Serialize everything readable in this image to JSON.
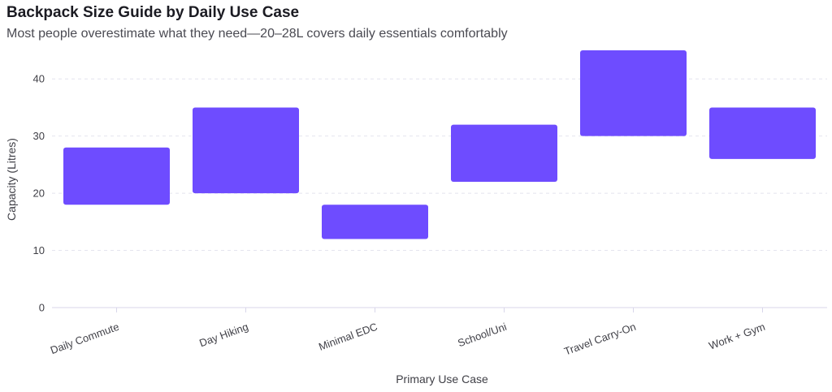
{
  "chart_data": {
    "type": "bar",
    "subtype": "floating-range",
    "title": "Backpack Size Guide by Daily Use Case",
    "subtitle": "Most people overestimate what they need—20–28L covers daily essentials comfortably",
    "xlabel": "Primary Use Case",
    "ylabel": "Capacity (Litres)",
    "ylim": [
      0,
      45
    ],
    "yticks": [
      0,
      10,
      20,
      30,
      40
    ],
    "grid": true,
    "categories": [
      "Daily Commute",
      "Day Hiking",
      "Minimal EDC",
      "School/Uni",
      "Travel Carry-On",
      "Work + Gym"
    ],
    "ranges": [
      {
        "low": 18,
        "high": 28
      },
      {
        "low": 20,
        "high": 35
      },
      {
        "low": 12,
        "high": 18
      },
      {
        "low": 22,
        "high": 32
      },
      {
        "low": 30,
        "high": 45
      },
      {
        "low": 26,
        "high": 35
      }
    ],
    "bar_color": "#6e4cff",
    "grid_color": "#e4e4ee",
    "axis_color": "#d8d6ea"
  }
}
